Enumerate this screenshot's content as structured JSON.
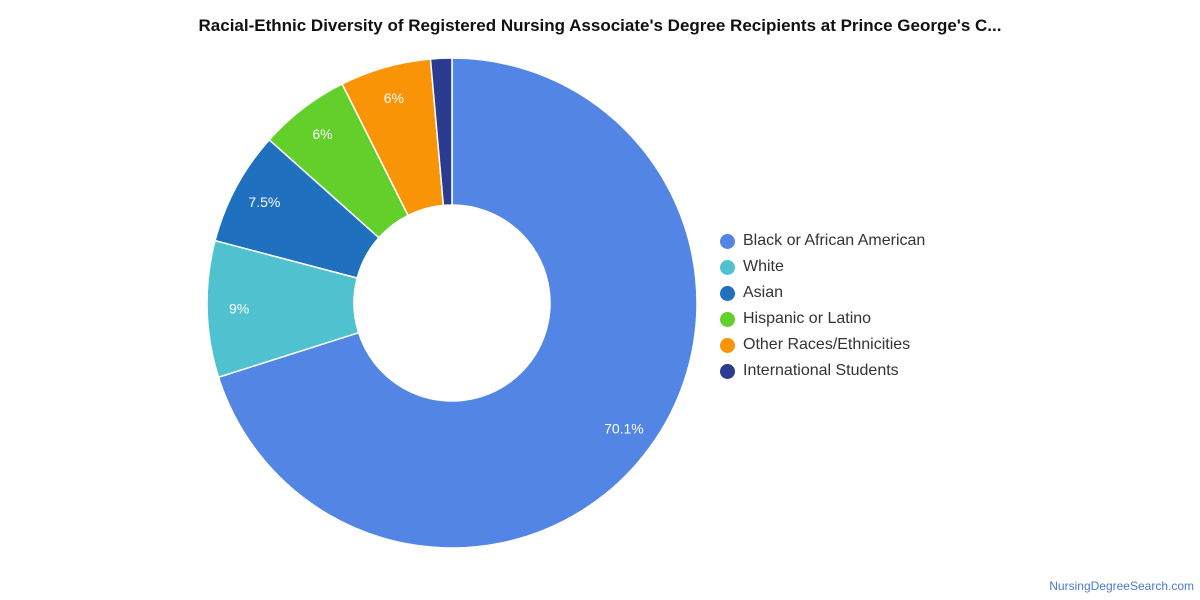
{
  "chart_data": {
    "type": "pie",
    "variant": "donut",
    "title": "Racial-Ethnic Diversity of Registered Nursing Associate's Degree Recipients at Prince George's C...",
    "series": [
      {
        "name": "Black or African American",
        "value": 70.1,
        "label": "70.1%",
        "color": "#5386e4"
      },
      {
        "name": "White",
        "value": 9.0,
        "label": "9%",
        "color": "#50c2cf"
      },
      {
        "name": "Asian",
        "value": 7.5,
        "label": "7.5%",
        "color": "#1f70bf"
      },
      {
        "name": "Hispanic or Latino",
        "value": 6.0,
        "label": "6%",
        "color": "#63cf2a"
      },
      {
        "name": "Other Races/Ethnicities",
        "value": 6.0,
        "label": "6%",
        "color": "#f99406"
      },
      {
        "name": "International Students",
        "value": 1.4,
        "label": "",
        "color": "#2b3b8f"
      }
    ],
    "legend_position": "right"
  },
  "watermark": "NursingDegreeSearch.com"
}
